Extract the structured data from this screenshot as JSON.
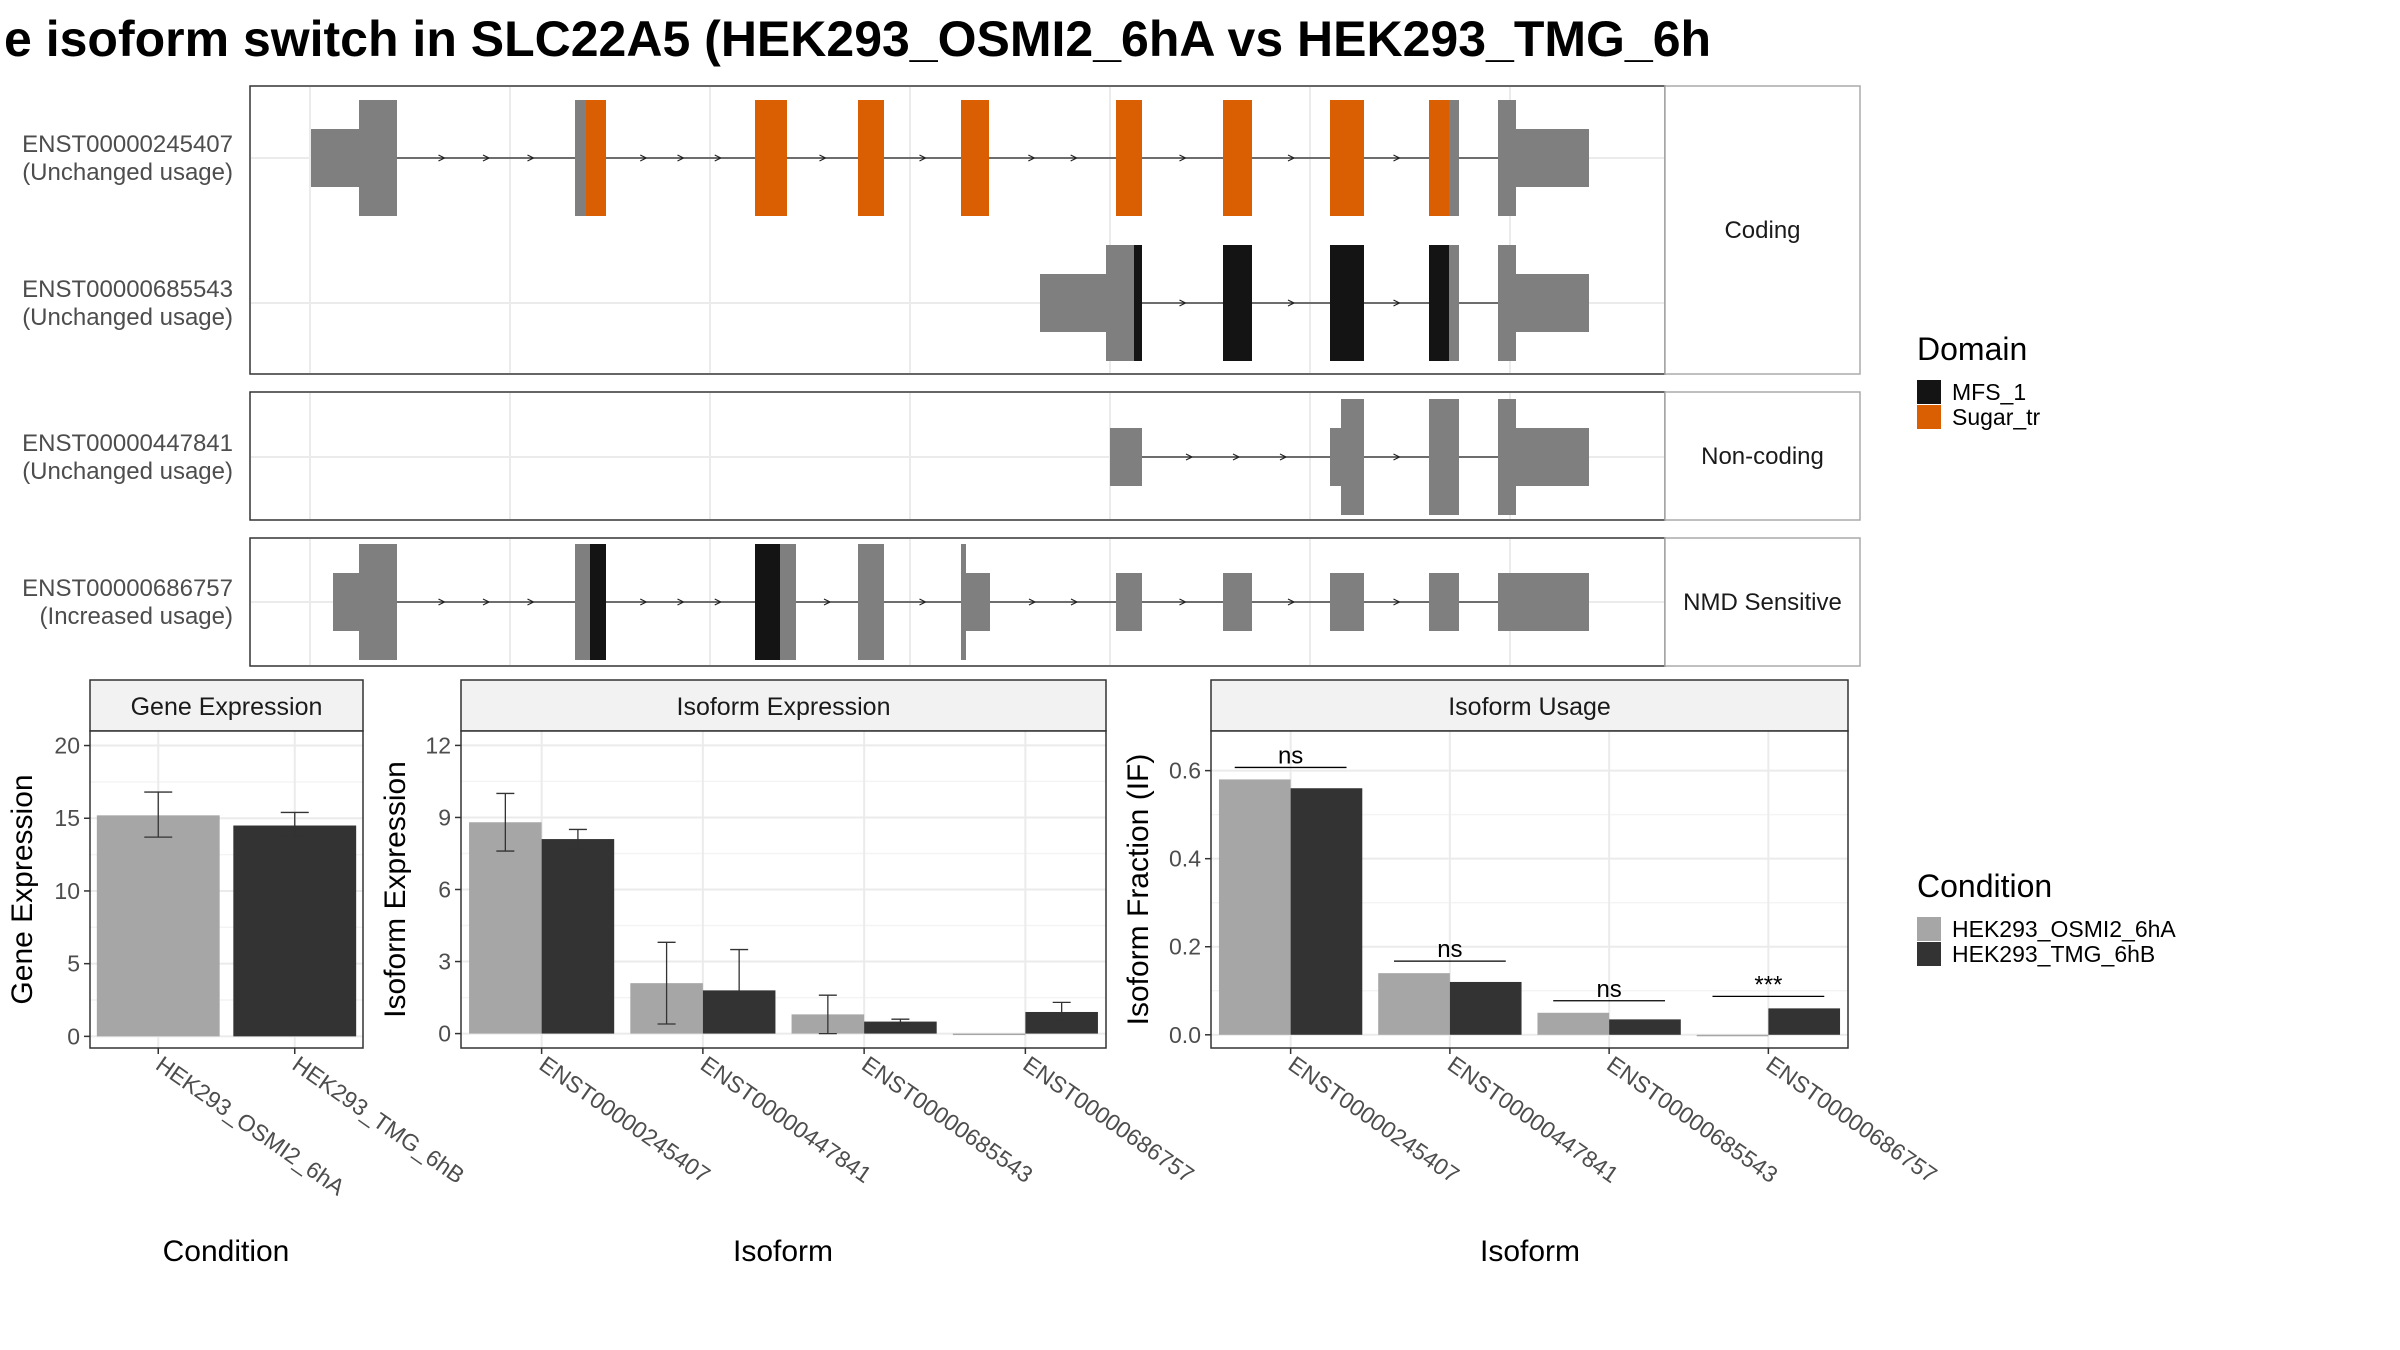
{
  "title": "e isoform switch in SLC22A5 (HEK293_OSMI2_6hA vs HEK293_TMG_6h",
  "colors": {
    "exon": "#7f7f7f",
    "MFS_1": "#141414",
    "Sugar_tr": "#d95f02",
    "condA": "#a6a6a6",
    "condB": "#333333",
    "strip": "#f2f2f2",
    "grid": "#ebebeb"
  },
  "structure": {
    "groups": [
      {
        "label": "Coding",
        "transcripts": [
          {
            "id": "ENST00000245407",
            "usage": "(Unchanged usage)"
          },
          {
            "id": "ENST00000685543",
            "usage": "(Unchanged usage)"
          }
        ]
      },
      {
        "label": "Non-coding",
        "transcripts": [
          {
            "id": "ENST00000447841",
            "usage": "(Unchanged usage)"
          }
        ]
      },
      {
        "label": "NMD Sensitive",
        "transcripts": [
          {
            "id": "ENST00000686757",
            "usage": "(Increased usage)"
          }
        ]
      }
    ],
    "domain_legend": {
      "title": "Domain",
      "items": [
        "MFS_1",
        "Sugar_tr"
      ]
    }
  },
  "condition_legend": {
    "title": "Condition",
    "items": [
      "HEK293_OSMI2_6hA",
      "HEK293_TMG_6hB"
    ]
  },
  "chart_data": [
    {
      "type": "bar",
      "title": "Gene Expression",
      "xlabel": "Condition",
      "ylabel": "Gene Expression",
      "ylim": [
        -0.8,
        21
      ],
      "yticks": [
        0,
        5,
        10,
        15,
        20
      ],
      "categories": [
        "HEK293_OSMI2_6hA",
        "HEK293_TMG_6hB"
      ],
      "values": [
        15.2,
        14.5
      ],
      "errors": [
        [
          13.7,
          16.8
        ],
        [
          13.8,
          15.4
        ]
      ]
    },
    {
      "type": "bar",
      "title": "Isoform Expression",
      "xlabel": "Isoform",
      "ylabel": "Isoform Expression",
      "ylim": [
        -0.6,
        12.6
      ],
      "yticks": [
        0,
        3,
        6,
        9,
        12
      ],
      "categories": [
        "ENST00000245407",
        "ENST00000447841",
        "ENST00000685543",
        "ENST00000686757"
      ],
      "series": [
        {
          "name": "HEK293_OSMI2_6hA",
          "values": [
            8.8,
            2.1,
            0.8,
            0.0
          ],
          "errors": [
            [
              7.6,
              10.0
            ],
            [
              0.4,
              3.8
            ],
            [
              0.0,
              1.6
            ],
            [
              0.0,
              0.0
            ]
          ]
        },
        {
          "name": "HEK293_TMG_6hB",
          "values": [
            8.1,
            1.8,
            0.5,
            0.9
          ],
          "errors": [
            [
              7.7,
              8.5
            ],
            [
              0.1,
              3.5
            ],
            [
              0.4,
              0.6
            ],
            [
              0.6,
              1.3
            ]
          ]
        }
      ]
    },
    {
      "type": "bar",
      "title": "Isoform Usage",
      "xlabel": "Isoform",
      "ylabel": "Isoform Fraction (IF)",
      "ylim": [
        -0.03,
        0.69
      ],
      "yticks": [
        0.0,
        0.2,
        0.4,
        0.6
      ],
      "ytick_labels": [
        "0.0",
        "0.2",
        "0.4",
        "0.6"
      ],
      "categories": [
        "ENST00000245407",
        "ENST00000447841",
        "ENST00000685543",
        "ENST00000686757"
      ],
      "series": [
        {
          "name": "HEK293_OSMI2_6hA",
          "values": [
            0.58,
            0.14,
            0.05,
            0.0
          ]
        },
        {
          "name": "HEK293_TMG_6hB",
          "values": [
            0.56,
            0.12,
            0.035,
            0.06
          ]
        }
      ],
      "significance": [
        "ns",
        "ns",
        "ns",
        "***"
      ]
    }
  ]
}
